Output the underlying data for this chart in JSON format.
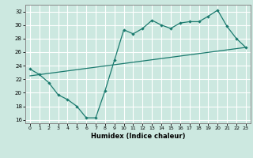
{
  "xlabel": "Humidex (Indice chaleur)",
  "bg_color": "#cce8e0",
  "grid_color": "#ffffff",
  "line_color": "#1a7a6e",
  "xlim": [
    -0.5,
    23.5
  ],
  "ylim": [
    15.5,
    33.0
  ],
  "xticks": [
    0,
    1,
    2,
    3,
    4,
    5,
    6,
    7,
    8,
    9,
    10,
    11,
    12,
    13,
    14,
    15,
    16,
    17,
    18,
    19,
    20,
    21,
    22,
    23
  ],
  "yticks": [
    16,
    18,
    20,
    22,
    24,
    26,
    28,
    30,
    32
  ],
  "series1_x": [
    0,
    1,
    2,
    3,
    4,
    5,
    6,
    7,
    8,
    9,
    10,
    11,
    12,
    13,
    14,
    15,
    16,
    17,
    18,
    19,
    20,
    21,
    22,
    23
  ],
  "series1_y": [
    23.5,
    22.7,
    21.5,
    19.7,
    19.0,
    18.0,
    16.3,
    16.3,
    20.3,
    24.8,
    29.3,
    28.7,
    29.5,
    30.7,
    30.0,
    29.5,
    30.3,
    30.5,
    30.5,
    31.3,
    32.2,
    29.8,
    28.0,
    26.7
  ],
  "trend_x": [
    0,
    23
  ],
  "trend_y": [
    22.5,
    26.7
  ]
}
